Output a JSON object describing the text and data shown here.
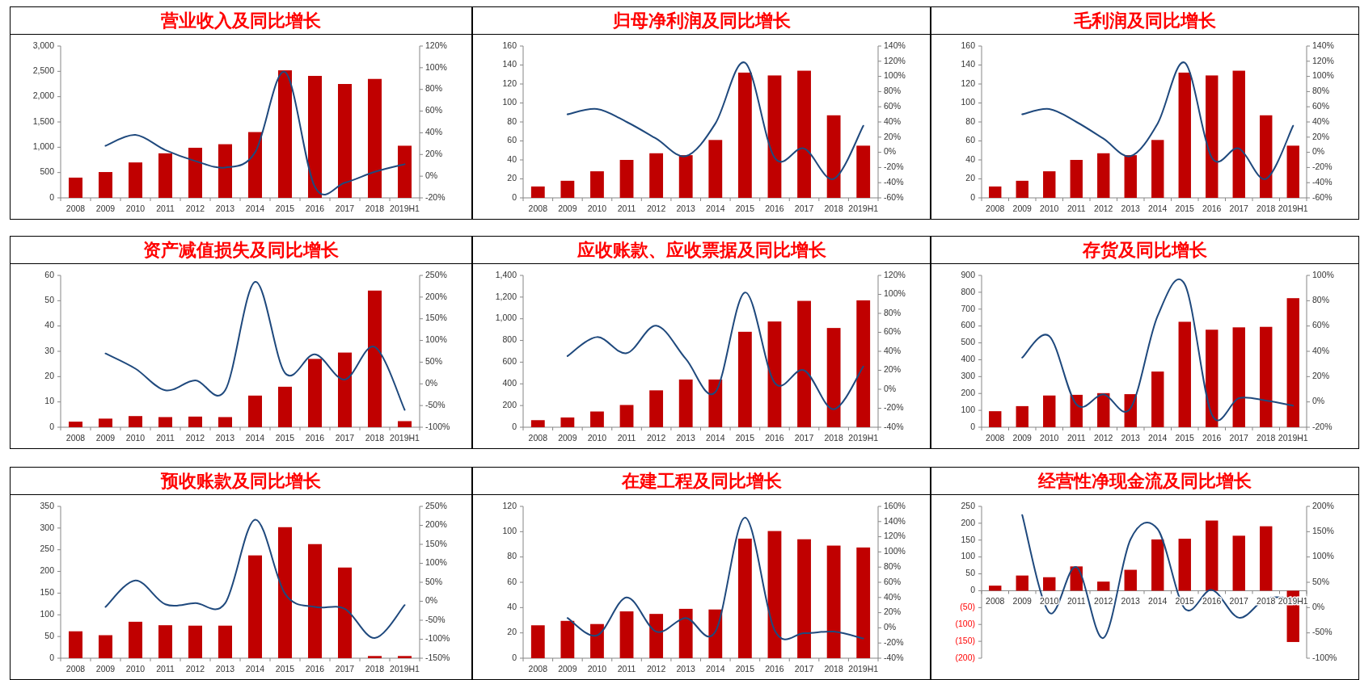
{
  "chart_data": [
    {
      "type": "bar",
      "title": "营业收入及同比增长",
      "categories": [
        "2008",
        "2009",
        "2010",
        "2011",
        "2012",
        "2013",
        "2014",
        "2015",
        "2016",
        "2017",
        "2018",
        "2019H1"
      ],
      "series": [
        {
          "color": "#c00000",
          "values": [
            400,
            510,
            700,
            880,
            990,
            1060,
            1300,
            2520,
            2410,
            2250,
            2350,
            1030
          ]
        },
        {
          "type": "line",
          "axis": "y2",
          "color": "#1f497d",
          "values": [
            null,
            28,
            38,
            24,
            14,
            8,
            22,
            96,
            -10,
            -6,
            4,
            11
          ]
        }
      ],
      "ylim": [
        0,
        3000
      ],
      "yticks": [
        0,
        {
          "value": 500,
          "label": "500"
        },
        {
          "value": 1000,
          "label": "1,000"
        },
        {
          "value": 1500,
          "label": "1,500"
        },
        {
          "value": 2000,
          "label": "2,000"
        },
        {
          "value": 2500,
          "label": "2,500"
        },
        {
          "value": 3000,
          "label": "3,000"
        }
      ],
      "y2lim": [
        -20,
        120
      ],
      "y2ticks": [
        {
          "value": -20,
          "label": "-20%"
        },
        {
          "value": 0,
          "label": "0%"
        },
        {
          "value": 20,
          "label": "20%"
        },
        {
          "value": 40,
          "label": "40%"
        },
        {
          "value": 60,
          "label": "60%"
        },
        {
          "value": 80,
          "label": "80%"
        },
        {
          "value": 100,
          "label": "100%"
        },
        {
          "value": 120,
          "label": "120%"
        }
      ]
    },
    {
      "type": "bar",
      "title": "归母净利润及同比增长",
      "categories": [
        "2008",
        "2009",
        "2010",
        "2011",
        "2012",
        "2013",
        "2014",
        "2015",
        "2016",
        "2017",
        "2018",
        "2019H1"
      ],
      "series": [
        {
          "color": "#c00000",
          "values": [
            12,
            18,
            28,
            40,
            47,
            45,
            61,
            132,
            129,
            134,
            87,
            55
          ]
        },
        {
          "type": "line",
          "axis": "y2",
          "color": "#1f497d",
          "values": [
            null,
            50,
            57,
            40,
            18,
            -5,
            38,
            118,
            -7,
            5,
            -35,
            35
          ]
        }
      ],
      "ylim": [
        0,
        160
      ],
      "yticks": [
        0,
        20,
        40,
        60,
        80,
        100,
        120,
        140,
        160
      ],
      "y2lim": [
        -60,
        140
      ],
      "y2ticks": [
        {
          "value": -60,
          "label": "-60%"
        },
        {
          "value": -40,
          "label": "-40%"
        },
        {
          "value": -20,
          "label": "-20%"
        },
        {
          "value": 0,
          "label": "0%"
        },
        {
          "value": 20,
          "label": "20%"
        },
        {
          "value": 40,
          "label": "40%"
        },
        {
          "value": 60,
          "label": "60%"
        },
        {
          "value": 80,
          "label": "80%"
        },
        {
          "value": 100,
          "label": "100%"
        },
        {
          "value": 120,
          "label": "120%"
        },
        {
          "value": 140,
          "label": "140%"
        }
      ]
    },
    {
      "type": "bar",
      "title": "毛利润及同比增长",
      "categories": [
        "2008",
        "2009",
        "2010",
        "2011",
        "2012",
        "2013",
        "2014",
        "2015",
        "2016",
        "2017",
        "2018",
        "2019H1"
      ],
      "series": [
        {
          "color": "#c00000",
          "values": [
            12,
            18,
            28,
            40,
            47,
            45,
            61,
            132,
            129,
            134,
            87,
            55
          ]
        },
        {
          "type": "line",
          "axis": "y2",
          "color": "#1f497d",
          "values": [
            null,
            50,
            57,
            40,
            18,
            -5,
            38,
            118,
            -7,
            5,
            -35,
            35
          ]
        }
      ],
      "ylim": [
        0,
        160
      ],
      "yticks": [
        0,
        20,
        40,
        60,
        80,
        100,
        120,
        140,
        160
      ],
      "y2lim": [
        -60,
        140
      ],
      "y2ticks": [
        {
          "value": -60,
          "label": "-60%"
        },
        {
          "value": -40,
          "label": "-40%"
        },
        {
          "value": -20,
          "label": "-20%"
        },
        {
          "value": 0,
          "label": "0%"
        },
        {
          "value": 20,
          "label": "20%"
        },
        {
          "value": 40,
          "label": "40%"
        },
        {
          "value": 60,
          "label": "60%"
        },
        {
          "value": 80,
          "label": "80%"
        },
        {
          "value": 100,
          "label": "100%"
        },
        {
          "value": 120,
          "label": "120%"
        },
        {
          "value": 140,
          "label": "140%"
        }
      ]
    },
    {
      "type": "bar",
      "title": "资产减值损失及同比增长",
      "categories": [
        "2008",
        "2009",
        "2010",
        "2011",
        "2012",
        "2013",
        "2014",
        "2015",
        "2016",
        "2017",
        "2018",
        "2019H1"
      ],
      "series": [
        {
          "color": "#c00000",
          "values": [
            2.2,
            3.4,
            4.4,
            4.0,
            4.2,
            4.0,
            12.5,
            16,
            27,
            29.5,
            54,
            2.4
          ]
        },
        {
          "type": "line",
          "axis": "y2",
          "color": "#1f497d",
          "values": [
            null,
            70,
            35,
            -15,
            8,
            -15,
            235,
            25,
            68,
            10,
            85,
            -60
          ]
        }
      ],
      "ylim": [
        0,
        60
      ],
      "yticks": [
        0,
        10,
        20,
        30,
        40,
        50,
        60
      ],
      "y2lim": [
        -100,
        250
      ],
      "y2ticks": [
        {
          "value": -100,
          "label": "-100%"
        },
        {
          "value": -50,
          "label": "-50%"
        },
        {
          "value": 0,
          "label": "0%"
        },
        {
          "value": 50,
          "label": "50%"
        },
        {
          "value": 100,
          "label": "100%"
        },
        {
          "value": 150,
          "label": "150%"
        },
        {
          "value": 200,
          "label": "200%"
        },
        {
          "value": 250,
          "label": "250%"
        }
      ]
    },
    {
      "type": "bar",
      "title": "应收账款、应收票据及同比增长",
      "categories": [
        "2008",
        "2009",
        "2010",
        "2011",
        "2012",
        "2013",
        "2014",
        "2015",
        "2016",
        "2017",
        "2018",
        "2019H1"
      ],
      "series": [
        {
          "color": "#c00000",
          "values": [
            65,
            90,
            145,
            205,
            340,
            440,
            440,
            880,
            975,
            1165,
            915,
            1170
          ]
        },
        {
          "type": "line",
          "axis": "y2",
          "color": "#1f497d",
          "values": [
            null,
            35,
            55,
            38,
            67,
            32,
            -3,
            102,
            7,
            20,
            -21,
            24
          ]
        }
      ],
      "ylim": [
        0,
        1400
      ],
      "yticks": [
        0,
        200,
        400,
        600,
        800,
        {
          "value": 1000,
          "label": "1,000"
        },
        {
          "value": 1200,
          "label": "1,200"
        },
        {
          "value": 1400,
          "label": "1,400"
        }
      ],
      "y2lim": [
        -40,
        120
      ],
      "y2ticks": [
        {
          "value": -40,
          "label": "-40%"
        },
        {
          "value": -20,
          "label": "-20%"
        },
        {
          "value": 0,
          "label": "0%"
        },
        {
          "value": 20,
          "label": "20%"
        },
        {
          "value": 40,
          "label": "40%"
        },
        {
          "value": 60,
          "label": "60%"
        },
        {
          "value": 80,
          "label": "80%"
        },
        {
          "value": 100,
          "label": "100%"
        },
        {
          "value": 120,
          "label": "120%"
        }
      ]
    },
    {
      "type": "bar",
      "title": "存货及同比增长",
      "categories": [
        "2008",
        "2009",
        "2010",
        "2011",
        "2012",
        "2013",
        "2014",
        "2015",
        "2016",
        "2017",
        "2018",
        "2019H1"
      ],
      "series": [
        {
          "color": "#c00000",
          "values": [
            95,
            125,
            188,
            192,
            202,
            196,
            330,
            625,
            578,
            592,
            595,
            765
          ]
        },
        {
          "type": "line",
          "axis": "y2",
          "color": "#1f497d",
          "values": [
            null,
            35,
            52,
            -2,
            6,
            -5,
            68,
            93,
            -10,
            3,
            1,
            -3
          ]
        }
      ],
      "ylim": [
        0,
        900
      ],
      "yticks": [
        0,
        100,
        200,
        300,
        400,
        500,
        600,
        700,
        800,
        900
      ],
      "y2lim": [
        -20,
        100
      ],
      "y2ticks": [
        {
          "value": -20,
          "label": "-20%"
        },
        {
          "value": 0,
          "label": "0%"
        },
        {
          "value": 20,
          "label": "20%"
        },
        {
          "value": 40,
          "label": "40%"
        },
        {
          "value": 60,
          "label": "60%"
        },
        {
          "value": 80,
          "label": "80%"
        },
        {
          "value": 100,
          "label": "100%"
        }
      ]
    },
    {
      "type": "bar",
      "title": "预收账款及同比增长",
      "categories": [
        "2008",
        "2009",
        "2010",
        "2011",
        "2012",
        "2013",
        "2014",
        "2015",
        "2016",
        "2017",
        "2018",
        "2019H1"
      ],
      "series": [
        {
          "color": "#c00000",
          "values": [
            62,
            53,
            84,
            76,
            75,
            75,
            237,
            302,
            263,
            209,
            5,
            5
          ]
        },
        {
          "type": "line",
          "axis": "y2",
          "color": "#1f497d",
          "values": [
            null,
            -15,
            55,
            -8,
            -5,
            -5,
            215,
            20,
            -15,
            -20,
            -97,
            -10
          ]
        }
      ],
      "ylim": [
        0,
        350
      ],
      "yticks": [
        0,
        50,
        100,
        150,
        200,
        250,
        300,
        350
      ],
      "y2lim": [
        -150,
        250
      ],
      "y2ticks": [
        {
          "value": -150,
          "label": "-150%"
        },
        {
          "value": -100,
          "label": "-100%"
        },
        {
          "value": -50,
          "label": "-50%"
        },
        {
          "value": 0,
          "label": "0%"
        },
        {
          "value": 50,
          "label": "50%"
        },
        {
          "value": 100,
          "label": "100%"
        },
        {
          "value": 150,
          "label": "150%"
        },
        {
          "value": 200,
          "label": "200%"
        },
        {
          "value": 250,
          "label": "250%"
        }
      ]
    },
    {
      "type": "bar",
      "title": "在建工程及同比增长",
      "categories": [
        "2008",
        "2009",
        "2010",
        "2011",
        "2012",
        "2013",
        "2014",
        "2015",
        "2016",
        "2017",
        "2018",
        "2019H1"
      ],
      "series": [
        {
          "color": "#c00000",
          "values": [
            26,
            29.5,
            27,
            37,
            35,
            39,
            38.5,
            94.5,
            100.5,
            94,
            89,
            87.5
          ]
        },
        {
          "type": "line",
          "axis": "y2",
          "color": "#1f497d",
          "values": [
            null,
            13,
            -10,
            40,
            -5,
            13,
            -5,
            145,
            -3,
            -7,
            -5,
            -14
          ]
        }
      ],
      "ylim": [
        0,
        120
      ],
      "yticks": [
        0,
        20,
        40,
        60,
        80,
        100,
        120
      ],
      "y2lim": [
        -40,
        160
      ],
      "y2ticks": [
        {
          "value": -40,
          "label": "-40%"
        },
        {
          "value": -20,
          "label": "-20%"
        },
        {
          "value": 0,
          "label": "0%"
        },
        {
          "value": 20,
          "label": "20%"
        },
        {
          "value": 40,
          "label": "40%"
        },
        {
          "value": 60,
          "label": "60%"
        },
        {
          "value": 80,
          "label": "80%"
        },
        {
          "value": 100,
          "label": "100%"
        },
        {
          "value": 120,
          "label": "120%"
        },
        {
          "value": 140,
          "label": "140%"
        },
        {
          "value": 160,
          "label": "160%"
        }
      ]
    },
    {
      "type": "bar",
      "title": "经营性净现金流及同比增长",
      "categories": [
        "2008",
        "2009",
        "2010",
        "2011",
        "2012",
        "2013",
        "2014",
        "2015",
        "2016",
        "2017",
        "2018",
        "2019H1"
      ],
      "series": [
        {
          "color": "#c00000",
          "values": [
            15,
            45,
            40,
            72,
            27,
            62,
            152,
            154,
            208,
            163,
            191,
            -152
          ]
        },
        {
          "type": "line",
          "axis": "y2",
          "color": "#1f497d",
          "values": [
            null,
            183,
            -10,
            80,
            -60,
            135,
            155,
            -2,
            35,
            -20,
            18,
            18
          ]
        }
      ],
      "ylim": [
        -200,
        250
      ],
      "yticks": [
        {
          "value": -200,
          "label": "(200)"
        },
        {
          "value": -150,
          "label": "(150)"
        },
        {
          "value": -100,
          "label": "(100)"
        },
        {
          "value": -50,
          "label": "(50)"
        },
        0,
        50,
        100,
        150,
        200,
        250
      ],
      "y2lim": [
        -100,
        200
      ],
      "y2ticks": [
        {
          "value": -100,
          "label": "-100%"
        },
        {
          "value": -50,
          "label": "-50%"
        },
        {
          "value": 0,
          "label": "0%"
        },
        {
          "value": 50,
          "label": "50%"
        },
        {
          "value": 100,
          "label": "100%"
        },
        {
          "value": 150,
          "label": "150%"
        },
        {
          "value": 200,
          "label": "200%"
        }
      ]
    }
  ]
}
